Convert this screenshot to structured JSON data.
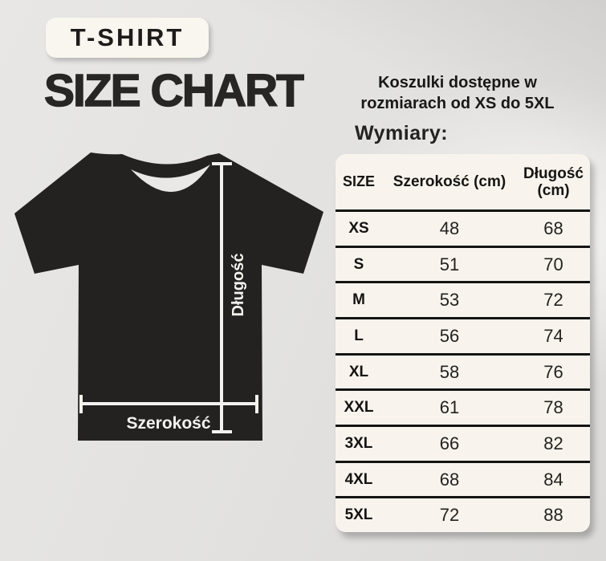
{
  "header": {
    "badge": "T-SHIRT",
    "title": "SIZE CHART"
  },
  "intro": {
    "line1": "Koszulki dostępne w",
    "line2": "rozmiarach od XS do 5XL",
    "dimensions_label": "Wymiary:"
  },
  "diagram": {
    "length_label": "Długość",
    "width_label": "Szerokość"
  },
  "chart_data": {
    "type": "table",
    "title": "SIZE CHART",
    "units": "cm",
    "columns": [
      "SIZE",
      "Szerokość (cm)",
      "Długość (cm)"
    ],
    "rows": [
      [
        "XS",
        "48",
        "68"
      ],
      [
        "S",
        "51",
        "70"
      ],
      [
        "M",
        "53",
        "72"
      ],
      [
        "L",
        "56",
        "74"
      ],
      [
        "XL",
        "58",
        "76"
      ],
      [
        "XXL",
        "61",
        "78"
      ],
      [
        "3XL",
        "66",
        "82"
      ],
      [
        "4XL",
        "68",
        "84"
      ],
      [
        "5XL",
        "72",
        "88"
      ]
    ]
  },
  "colors": {
    "background": "#e2e1df",
    "panel": "#f8f4ed",
    "ink": "#1f1e1c",
    "shirt": "#242220",
    "measure_line": "#f4f2ee",
    "separator": "#141414"
  }
}
